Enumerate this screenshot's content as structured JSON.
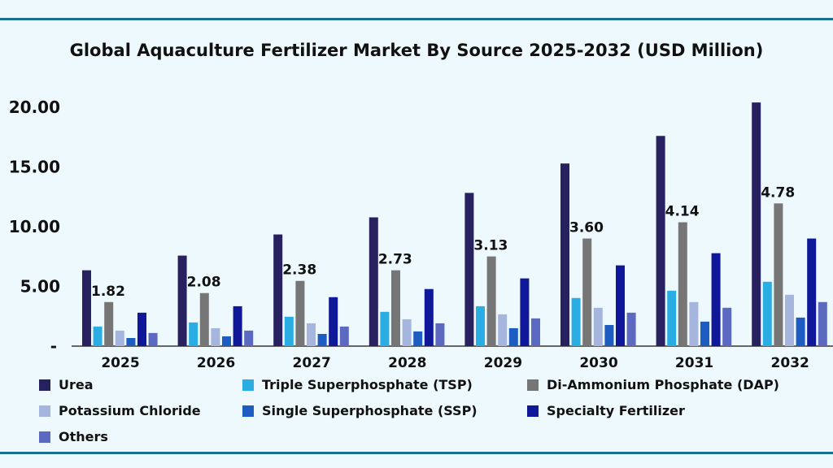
{
  "chart_data": {
    "type": "bar",
    "title": "Global Aquaculture Fertilizer Market By Source 2025-2032 (USD Million)",
    "xlabel": "",
    "ylabel": "",
    "ylim": [
      0,
      20
    ],
    "y_ticks": [
      "-",
      "5.00",
      "10.00",
      "15.00",
      "20.00"
    ],
    "grid": false,
    "legend_position": "bottom",
    "categories": [
      "2025",
      "2026",
      "2027",
      "2028",
      "2029",
      "2030",
      "2031",
      "2032"
    ],
    "series": [
      {
        "name": "Urea",
        "color": "#27225f",
        "values": [
          6.35,
          7.58,
          9.35,
          10.78,
          12.83,
          15.29,
          17.6,
          20.4
        ]
      },
      {
        "name": "Triple Superphosphate (TSP)",
        "color": "#29ade3",
        "values": [
          1.64,
          1.98,
          2.46,
          2.87,
          3.34,
          4.03,
          4.64,
          5.39
        ]
      },
      {
        "name": "Di-Ammonium Phosphate (DAP)",
        "color": "#767676",
        "values": [
          3.69,
          4.44,
          5.46,
          6.35,
          7.51,
          9.01,
          10.37,
          11.95
        ]
      },
      {
        "name": "Potassium Chloride",
        "color": "#a6b5de",
        "values": [
          1.3,
          1.5,
          1.91,
          2.25,
          2.66,
          3.21,
          3.69,
          4.3
        ]
      },
      {
        "name": "Single Superphosphate (SSP)",
        "color": "#1d5cc0",
        "values": [
          0.68,
          0.82,
          1.02,
          1.23,
          1.5,
          1.77,
          2.05,
          2.39
        ]
      },
      {
        "name": "Specialty Fertilizer",
        "color": "#10189a",
        "values": [
          2.8,
          3.34,
          4.1,
          4.78,
          5.67,
          6.76,
          7.78,
          9.01
        ]
      },
      {
        "name": "Others",
        "color": "#5b6ac0",
        "values": [
          1.1,
          1.3,
          1.64,
          1.91,
          2.32,
          2.8,
          3.21,
          3.69
        ]
      }
    ],
    "data_labels": [
      "1.82",
      "2.08",
      "2.38",
      "2.73",
      "3.13",
      "3.60",
      "4.14",
      "4.78"
    ]
  }
}
